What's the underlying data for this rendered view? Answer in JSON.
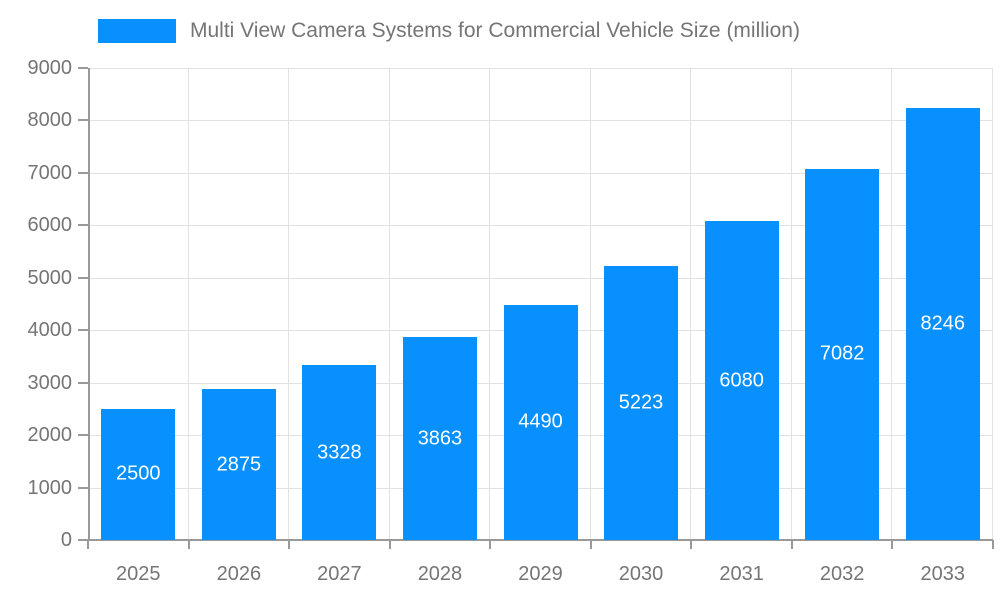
{
  "chart_data": {
    "type": "bar",
    "title": "Multi View Camera Systems for Commercial Vehicle Size (million)",
    "categories": [
      "2025",
      "2026",
      "2027",
      "2028",
      "2029",
      "2030",
      "2031",
      "2032",
      "2033"
    ],
    "values": [
      2500,
      2875,
      3328,
      3863,
      4490,
      5223,
      6080,
      7082,
      8246
    ],
    "xlabel": "",
    "ylabel": "",
    "ylim": [
      0,
      9000
    ],
    "yticks": [
      0,
      1000,
      2000,
      3000,
      4000,
      5000,
      6000,
      7000,
      8000,
      9000
    ],
    "grid": true,
    "legend_position": "top",
    "bar_labels_visible": true,
    "colors": {
      "bar": "#0890ff",
      "bar_label": "#ffffff",
      "axis_text": "#757575",
      "legend_text": "#757575",
      "grid_line": "#e2e2e2",
      "axis_line": "#999999",
      "background": "#ffffff"
    }
  }
}
